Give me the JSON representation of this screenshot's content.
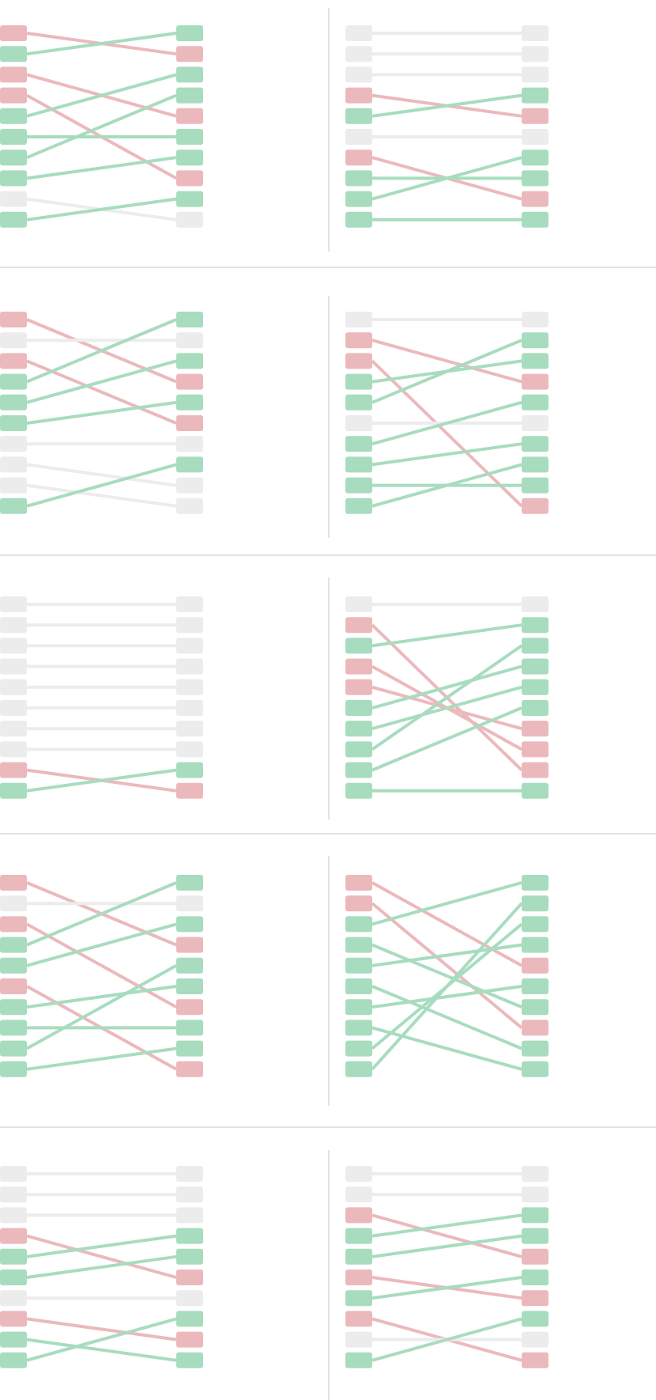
{
  "colors": {
    "good": "#a8dcbf",
    "bad": "#ebb9bc",
    "neutral": "#ececec",
    "divider": "#d2d2d2",
    "background": "#ffffff"
  },
  "rows": [
    {
      "panels": [
        {
          "left": [
            "bad",
            "good",
            "bad",
            "bad",
            "good",
            "good",
            "good",
            "good",
            "neutral",
            "good"
          ],
          "right": [
            "good",
            "bad",
            "good",
            "good",
            "bad",
            "good",
            "good",
            "bad",
            "good",
            "neutral"
          ],
          "links": [
            [
              0,
              1
            ],
            [
              1,
              0
            ],
            [
              2,
              4
            ],
            [
              3,
              7
            ],
            [
              4,
              2
            ],
            [
              5,
              5
            ],
            [
              6,
              3
            ],
            [
              7,
              6
            ],
            [
              8,
              9
            ],
            [
              9,
              8
            ]
          ]
        },
        {
          "left": [
            "neutral",
            "neutral",
            "neutral",
            "bad",
            "good",
            "neutral",
            "bad",
            "good",
            "good",
            "good"
          ],
          "right": [
            "neutral",
            "neutral",
            "neutral",
            "good",
            "bad",
            "neutral",
            "good",
            "good",
            "bad",
            "good"
          ],
          "links": [
            [
              0,
              0
            ],
            [
              1,
              1
            ],
            [
              2,
              2
            ],
            [
              3,
              4
            ],
            [
              4,
              3
            ],
            [
              5,
              5
            ],
            [
              6,
              8
            ],
            [
              7,
              7
            ],
            [
              8,
              6
            ],
            [
              9,
              9
            ]
          ]
        }
      ]
    },
    {
      "panels": [
        {
          "left": [
            "bad",
            "neutral",
            "bad",
            "good",
            "good",
            "good",
            "neutral",
            "neutral",
            "neutral",
            "good"
          ],
          "right": [
            "good",
            "neutral",
            "good",
            "bad",
            "good",
            "bad",
            "neutral",
            "good",
            "neutral",
            "neutral"
          ],
          "links": [
            [
              0,
              3
            ],
            [
              1,
              1
            ],
            [
              2,
              5
            ],
            [
              3,
              0
            ],
            [
              4,
              2
            ],
            [
              5,
              4
            ],
            [
              6,
              6
            ],
            [
              7,
              8
            ],
            [
              8,
              9
            ],
            [
              9,
              7
            ]
          ]
        },
        {
          "left": [
            "neutral",
            "bad",
            "bad",
            "good",
            "good",
            "neutral",
            "good",
            "good",
            "good",
            "good"
          ],
          "right": [
            "neutral",
            "good",
            "good",
            "bad",
            "good",
            "neutral",
            "good",
            "good",
            "good",
            "bad"
          ],
          "links": [
            [
              0,
              0
            ],
            [
              1,
              3
            ],
            [
              2,
              9
            ],
            [
              3,
              2
            ],
            [
              4,
              1
            ],
            [
              5,
              5
            ],
            [
              6,
              4
            ],
            [
              7,
              6
            ],
            [
              8,
              8
            ],
            [
              9,
              7
            ]
          ]
        }
      ]
    },
    {
      "panels": [
        {
          "left": [
            "neutral",
            "neutral",
            "neutral",
            "neutral",
            "neutral",
            "neutral",
            "neutral",
            "neutral",
            "bad",
            "good"
          ],
          "right": [
            "neutral",
            "neutral",
            "neutral",
            "neutral",
            "neutral",
            "neutral",
            "neutral",
            "neutral",
            "good",
            "bad"
          ],
          "links": [
            [
              0,
              0
            ],
            [
              1,
              1
            ],
            [
              2,
              2
            ],
            [
              3,
              3
            ],
            [
              4,
              4
            ],
            [
              5,
              5
            ],
            [
              6,
              6
            ],
            [
              7,
              7
            ],
            [
              8,
              9
            ],
            [
              9,
              8
            ]
          ]
        },
        {
          "left": [
            "neutral",
            "bad",
            "good",
            "bad",
            "bad",
            "good",
            "good",
            "good",
            "good",
            "good"
          ],
          "right": [
            "neutral",
            "good",
            "good",
            "good",
            "good",
            "good",
            "bad",
            "bad",
            "bad",
            "good"
          ],
          "links": [
            [
              0,
              0
            ],
            [
              1,
              8
            ],
            [
              2,
              1
            ],
            [
              3,
              7
            ],
            [
              4,
              6
            ],
            [
              5,
              3
            ],
            [
              6,
              4
            ],
            [
              7,
              2
            ],
            [
              8,
              5
            ],
            [
              9,
              9
            ]
          ]
        }
      ]
    },
    {
      "panels": [
        {
          "left": [
            "bad",
            "neutral",
            "bad",
            "good",
            "good",
            "bad",
            "good",
            "good",
            "good",
            "good"
          ],
          "right": [
            "good",
            "neutral",
            "good",
            "bad",
            "good",
            "good",
            "bad",
            "good",
            "good",
            "bad"
          ],
          "links": [
            [
              0,
              3
            ],
            [
              1,
              1
            ],
            [
              2,
              6
            ],
            [
              3,
              0
            ],
            [
              4,
              2
            ],
            [
              5,
              9
            ],
            [
              6,
              5
            ],
            [
              7,
              7
            ],
            [
              8,
              4
            ],
            [
              9,
              8
            ]
          ]
        },
        {
          "left": [
            "bad",
            "bad",
            "good",
            "good",
            "good",
            "good",
            "good",
            "good",
            "good",
            "good"
          ],
          "right": [
            "good",
            "good",
            "good",
            "good",
            "bad",
            "good",
            "good",
            "bad",
            "good",
            "good"
          ],
          "links": [
            [
              0,
              4
            ],
            [
              1,
              7
            ],
            [
              2,
              0
            ],
            [
              3,
              6
            ],
            [
              4,
              3
            ],
            [
              5,
              8
            ],
            [
              6,
              5
            ],
            [
              7,
              9
            ],
            [
              8,
              2
            ],
            [
              9,
              1
            ]
          ]
        }
      ]
    },
    {
      "panels": [
        {
          "left": [
            "neutral",
            "neutral",
            "neutral",
            "bad",
            "good",
            "good",
            "neutral",
            "bad",
            "good",
            "good"
          ],
          "right": [
            "neutral",
            "neutral",
            "neutral",
            "good",
            "good",
            "bad",
            "neutral",
            "good",
            "bad",
            "good"
          ],
          "links": [
            [
              0,
              0
            ],
            [
              1,
              1
            ],
            [
              2,
              2
            ],
            [
              3,
              5
            ],
            [
              4,
              3
            ],
            [
              5,
              4
            ],
            [
              6,
              6
            ],
            [
              7,
              8
            ],
            [
              8,
              9
            ],
            [
              9,
              7
            ]
          ]
        },
        {
          "left": [
            "neutral",
            "neutral",
            "bad",
            "good",
            "good",
            "bad",
            "good",
            "bad",
            "neutral",
            "good"
          ],
          "right": [
            "neutral",
            "neutral",
            "good",
            "good",
            "bad",
            "good",
            "bad",
            "good",
            "neutral",
            "bad"
          ],
          "links": [
            [
              0,
              0
            ],
            [
              1,
              1
            ],
            [
              2,
              4
            ],
            [
              3,
              2
            ],
            [
              4,
              3
            ],
            [
              5,
              6
            ],
            [
              6,
              5
            ],
            [
              7,
              9
            ],
            [
              8,
              8
            ],
            [
              9,
              7
            ]
          ]
        }
      ]
    }
  ]
}
